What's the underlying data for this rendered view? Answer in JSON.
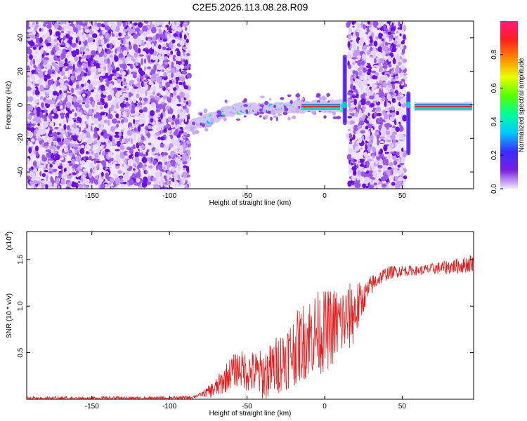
{
  "title": "C2E5.2026.113.08.28.R09",
  "chart_data": [
    {
      "type": "heatmap",
      "xlabel": "Height of straight line (km)",
      "ylabel": "Frequency (Hz)",
      "xlim": [
        -192,
        96
      ],
      "ylim": [
        -50,
        50
      ],
      "xticks": [
        -150,
        -100,
        -50,
        0,
        50
      ],
      "yticks": [
        -40,
        -20,
        0,
        20,
        40
      ],
      "colorbar": {
        "label": "Normalized spectral amplitude",
        "range": [
          0,
          1
        ],
        "ticks": [
          "0.0",
          "0.2",
          "0.4",
          "0.6",
          "0.8"
        ],
        "colors": [
          "#f2e8ff",
          "#7a1fe0",
          "#3a2cff",
          "#00c8ff",
          "#00ff9a",
          "#55ff00",
          "#e8ff00",
          "#ff8800",
          "#ff1e1e",
          "#ff1a7a"
        ]
      },
      "noise_regions": [
        [
          -192,
          -87
        ],
        [
          15,
          52
        ]
      ],
      "signal_trace": [
        {
          "x": -86,
          "y": -12
        },
        {
          "x": -75,
          "y": -9
        },
        {
          "x": -65,
          "y": -4
        },
        {
          "x": -50,
          "y": -2
        },
        {
          "x": -35,
          "y": -2
        },
        {
          "x": -20,
          "y": -1
        },
        {
          "x": -5,
          "y": -1
        },
        {
          "x": 10,
          "y": -1
        },
        {
          "x": 55,
          "y": -1
        },
        {
          "x": 75,
          "y": -1
        },
        {
          "x": 95,
          "y": -1
        }
      ],
      "spikes": [
        {
          "x": 13,
          "y_range": [
            -12,
            30
          ]
        },
        {
          "x": 54,
          "y_range": [
            -30,
            8
          ]
        }
      ]
    },
    {
      "type": "line",
      "xlabel": "Height of straight line (km)",
      "ylabel": "SNR (10 * v/v)",
      "scale_label": "(x10",
      "scale_exponent": "4",
      "xlim": [
        -192,
        96
      ],
      "ylim": [
        0,
        1.8
      ],
      "xticks": [
        -150,
        -100,
        -50,
        0,
        50
      ],
      "yticks": [
        "0.5",
        "1.0",
        "1.5"
      ],
      "series": [
        {
          "color": "#e81e1e",
          "points": [
            [
              -192,
              0.01
            ],
            [
              -100,
              0.01
            ],
            [
              -86,
              0.02
            ],
            [
              -80,
              0.05
            ],
            [
              -75,
              0.08
            ],
            [
              -70,
              0.12
            ],
            [
              -65,
              0.2
            ],
            [
              -60,
              0.3
            ],
            [
              -55,
              0.33
            ],
            [
              -50,
              0.3
            ],
            [
              -45,
              0.28
            ],
            [
              -40,
              0.26
            ],
            [
              -35,
              0.3
            ],
            [
              -30,
              0.38
            ],
            [
              -25,
              0.45
            ],
            [
              -20,
              0.52
            ],
            [
              -15,
              0.6
            ],
            [
              -10,
              0.68
            ],
            [
              -5,
              0.72
            ],
            [
              0,
              0.72
            ],
            [
              5,
              0.78
            ],
            [
              10,
              0.82
            ],
            [
              15,
              0.86
            ],
            [
              20,
              0.95
            ],
            [
              25,
              1.08
            ],
            [
              30,
              1.22
            ],
            [
              35,
              1.3
            ],
            [
              40,
              1.35
            ],
            [
              45,
              1.37
            ],
            [
              50,
              1.38
            ],
            [
              55,
              1.38
            ],
            [
              60,
              1.38
            ],
            [
              70,
              1.4
            ],
            [
              80,
              1.42
            ],
            [
              90,
              1.44
            ],
            [
              96,
              1.47
            ]
          ],
          "noise": [
            [
              -80,
              0.02
            ],
            [
              -65,
              0.15
            ],
            [
              -50,
              0.22
            ],
            [
              -35,
              0.3
            ],
            [
              -20,
              0.38
            ],
            [
              -10,
              0.45
            ],
            [
              0,
              0.45
            ],
            [
              10,
              0.4
            ],
            [
              20,
              0.35
            ],
            [
              25,
              0.15
            ],
            [
              35,
              0.08
            ],
            [
              60,
              0.05
            ],
            [
              96,
              0.1
            ]
          ]
        }
      ]
    }
  ]
}
